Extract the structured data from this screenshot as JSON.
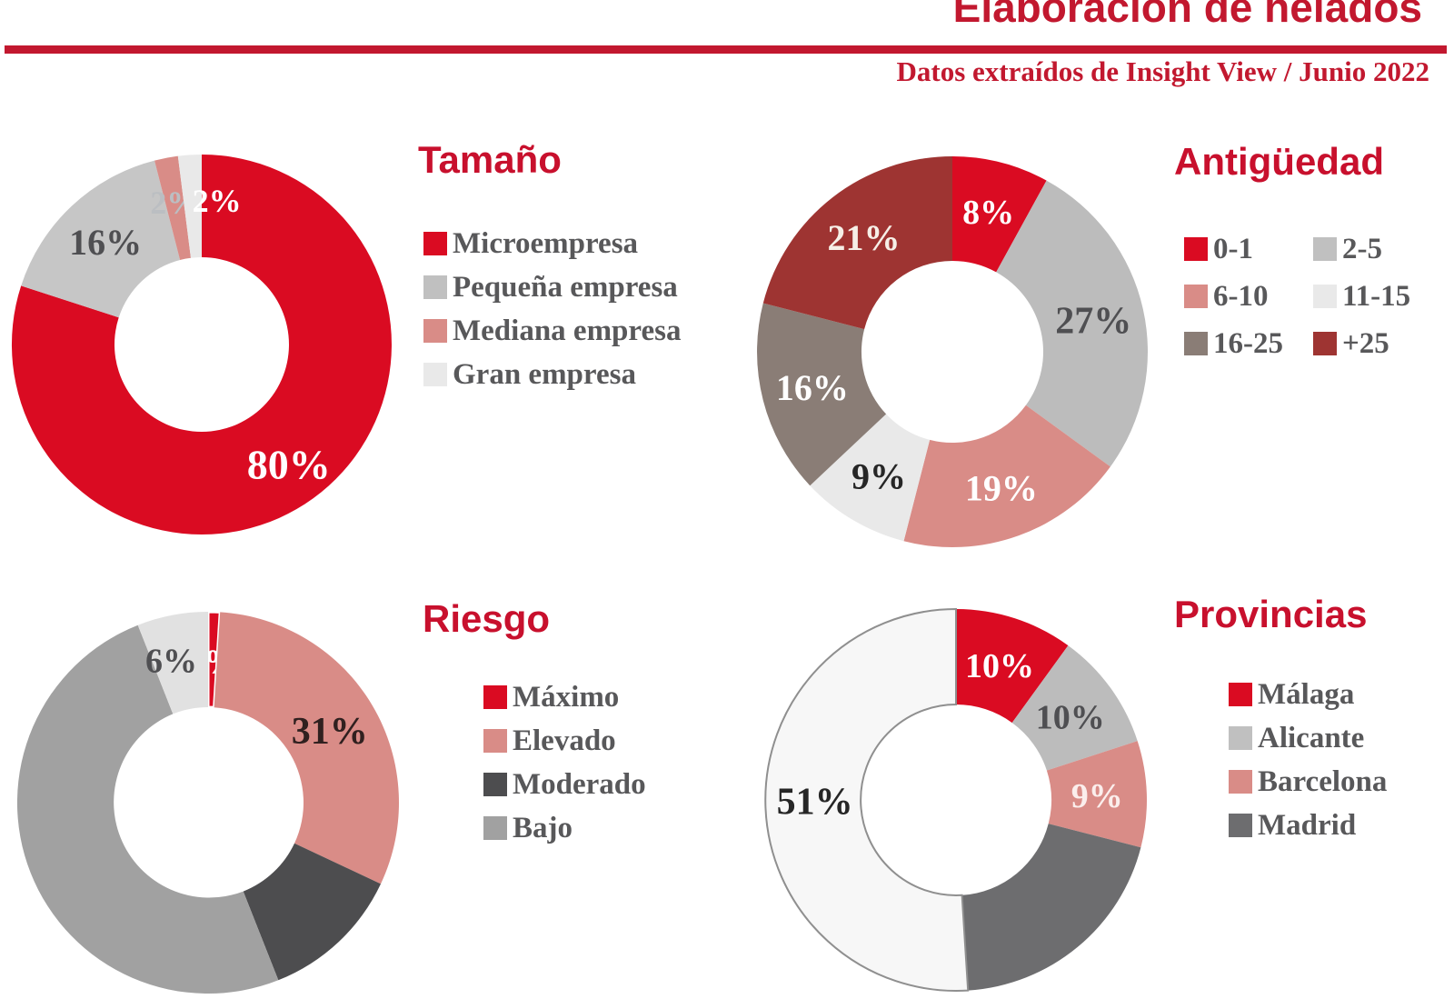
{
  "header": {
    "title": "Elaboración de helados",
    "subtitle": "Datos extraídos de Insight View / Junio 2022"
  },
  "colors": {
    "accent_red": "#c2182f",
    "chart_red": "#da0b22",
    "gray": "#c0c0c0",
    "pink": "#d98c87",
    "light_gray": "#e9e9e9",
    "taupe": "#8a7d76",
    "dark_red": "#9e3432",
    "dark_gray": "#4d4d4f",
    "medium_gray": "#a1a1a1",
    "legend_text": "#58585a"
  },
  "chart_data": [
    {
      "type": "pie",
      "title": "Tamaño",
      "legend_position": "right",
      "legend": [
        {
          "label": "Microempresa",
          "color": "#da0b22"
        },
        {
          "label": "Pequeña empresa",
          "color": "#c0c0c0"
        },
        {
          "label": "Mediana empresa",
          "color": "#d98c87"
        },
        {
          "label": "Gran empresa",
          "color": "#e9e9e9"
        }
      ],
      "segments": [
        {
          "label": "Microempresa",
          "value": 80,
          "pct_label": "80%",
          "color": "#da0b22",
          "label_color": "#ffffff",
          "label_size": 46,
          "label_r": 0.78
        },
        {
          "label": "Pequeña empresa",
          "value": 16,
          "pct_label": "16%",
          "color": "#c6c6c6",
          "label_color": "#4f4f52",
          "label_size": 40
        },
        {
          "label": "Mediana empresa",
          "value": 2,
          "pct_label": "2%",
          "color": "#d98c87",
          "label_color": "#bbbec2",
          "label_size": 36,
          "label_r": 0.76
        },
        {
          "label": "Gran empresa",
          "value": 2,
          "pct_label": "2%",
          "color": "#e9e9e9",
          "label_color": "#ffffff",
          "label_size": 36,
          "label_angle": 6,
          "label_r": 0.76
        }
      ]
    },
    {
      "type": "pie",
      "title": "Antigüedad",
      "legend_position": "right",
      "legend": [
        {
          "label": "0-1",
          "color": "#da0b22"
        },
        {
          "label": "2-5",
          "color": "#c0c0c0"
        },
        {
          "label": "6-10",
          "color": "#d98c87"
        },
        {
          "label": "11-15",
          "color": "#e9e9e9"
        },
        {
          "label": "16-25",
          "color": "#8a7d76"
        },
        {
          "label": "+25",
          "color": "#9e3432"
        }
      ],
      "segments": [
        {
          "label": "0-1",
          "value": 8,
          "pct_label": "8%",
          "color": "#da0b22",
          "label_color": "#ffffff",
          "label_size": 38
        },
        {
          "label": "2-5",
          "value": 27,
          "pct_label": "27%",
          "color": "#bcbcbc",
          "label_color": "#4f4f52",
          "label_size": 42
        },
        {
          "label": "6-10",
          "value": 19,
          "pct_label": "19%",
          "color": "#d98c87",
          "label_color": "#ffffff",
          "label_size": 40
        },
        {
          "label": "11-15",
          "value": 9,
          "pct_label": "9%",
          "color": "#e9e9e9",
          "label_color": "#262626",
          "label_size": 40
        },
        {
          "label": "16-25",
          "value": 16,
          "pct_label": "16%",
          "color": "#8a7d76",
          "label_color": "#ffffff",
          "label_size": 40
        },
        {
          "label": "+25",
          "value": 21,
          "pct_label": "21%",
          "color": "#9e3432",
          "label_color": "#f6efe7",
          "label_size": 40
        }
      ]
    },
    {
      "type": "pie",
      "title": "Riesgo",
      "legend_position": "right",
      "legend": [
        {
          "label": "Máximo",
          "color": "#da0b22"
        },
        {
          "label": "Elevado",
          "color": "#d98c87"
        },
        {
          "label": "Moderado",
          "color": "#4d4d4f"
        },
        {
          "label": "Bajo",
          "color": "#a1a1a1"
        }
      ],
      "segments": [
        {
          "label": "Máximo",
          "value": 1,
          "pct_label": "1%",
          "color": "#da0b22",
          "label_color": "#ffffff",
          "label_size": 38,
          "stroke": "#ffffff",
          "stroke_width": 3
        },
        {
          "label": "Elevado",
          "value": 31,
          "pct_label": "31%",
          "color": "#d98c87",
          "label_color": "#30201f",
          "label_size": 42
        },
        {
          "label": "Moderado",
          "value": 12,
          "pct_label": "",
          "color": "#4d4d4f"
        },
        {
          "label": "Bajo",
          "value": 50,
          "pct_label": "",
          "color": "#a1a1a1"
        },
        {
          "label": "",
          "value": 6,
          "pct_label": "6%",
          "color": "#e1e1e1",
          "label_color": "#4f4f52",
          "label_size": 38,
          "label_angle": 345.5,
          "label_r": 0.77
        }
      ]
    },
    {
      "type": "pie",
      "title": "Provincias",
      "legend_position": "right",
      "legend": [
        {
          "label": "Málaga",
          "color": "#da0b22"
        },
        {
          "label": "Alicante",
          "color": "#c0c0c0"
        },
        {
          "label": "Barcelona",
          "color": "#d98c87"
        },
        {
          "label": "Madrid",
          "color": "#6d6d6f"
        }
      ],
      "segments": [
        {
          "label": "Málaga",
          "value": 10,
          "pct_label": "10%",
          "color": "#da0b22",
          "label_color": "#ffffff",
          "label_size": 38
        },
        {
          "label": "Alicante",
          "value": 10,
          "pct_label": "10%",
          "color": "#bcbcbc",
          "label_color": "#4f4f52",
          "label_size": 38
        },
        {
          "label": "Barcelona",
          "value": 9,
          "pct_label": "9%",
          "color": "#d98c87",
          "label_color": "#fbeeec",
          "label_size": 38
        },
        {
          "label": "Madrid",
          "value": 20,
          "pct_label": "",
          "color": "#6d6d6f"
        },
        {
          "label": "",
          "value": 51,
          "pct_label": "51%",
          "color": "#f7f7f7",
          "label_color": "#262626",
          "label_size": 42,
          "label_angle": 269.5,
          "stroke": "#8f8f8f",
          "stroke_width": 2
        }
      ]
    }
  ]
}
